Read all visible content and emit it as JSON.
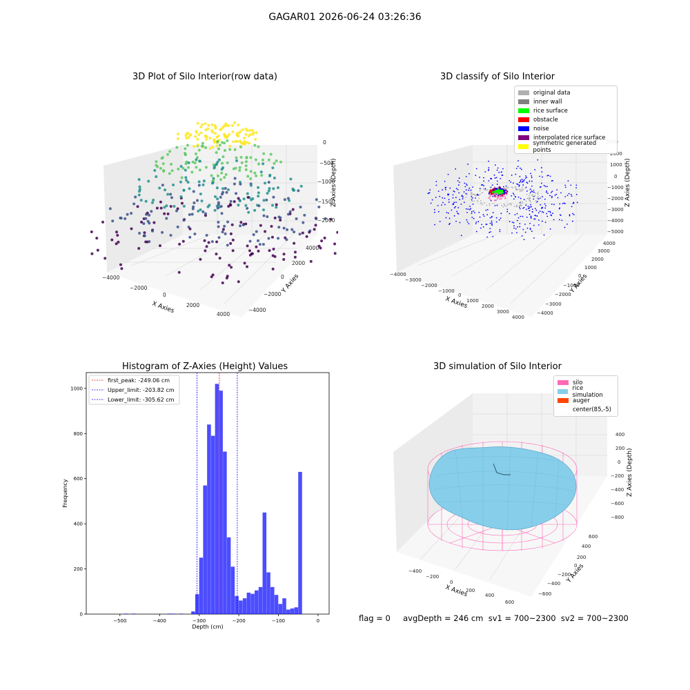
{
  "figure": {
    "suptitle": "GAGAR01 2026-06-24 03:26:36",
    "footer": "flag = 0     avgDepth = 246 cm  sv1 = 700~2300  sv2 = 700~2300"
  },
  "panels": {
    "raw": {
      "title": "3D Plot of Silo Interior(row data)",
      "xlabel": "X Axies",
      "ylabel": "Y Axies",
      "zlabel": "Z Axies (Depth)",
      "xticks": [
        "−4000",
        "−2000",
        "0",
        "2000",
        "4000"
      ],
      "yticks": [
        "−4000",
        "−2000",
        "0",
        "2000",
        "4000"
      ],
      "zticks": [
        "0",
        "−500",
        "−1000",
        "−1500",
        "−2000"
      ]
    },
    "classify": {
      "title": "3D classify of Silo Interior",
      "xlabel": "X Axies",
      "ylabel": "Y Axies",
      "zlabel": "Z Axies (Depth)",
      "xticks": [
        "−4000",
        "−3000",
        "−2000",
        "−1000",
        "0",
        "1000",
        "2000",
        "3000",
        "4000"
      ],
      "yticks": [
        "−4000",
        "−3000",
        "−2000",
        "−1000",
        "0",
        "1000",
        "2000",
        "3000",
        "4000"
      ],
      "zticks": [
        "3000",
        "2000",
        "1000",
        "0",
        "−1000",
        "−2000",
        "−3000",
        "−4000",
        "−5000"
      ],
      "legend": [
        {
          "label": "original data",
          "color": "#b0b0b0"
        },
        {
          "label": "inner wall",
          "color": "#808080"
        },
        {
          "label": "rice surface",
          "color": "#00ff00"
        },
        {
          "label": "obstacle",
          "color": "#ff0000"
        },
        {
          "label": "noise",
          "color": "#0000ff"
        },
        {
          "label": "interpolated rice surface",
          "color": "#800080"
        },
        {
          "label": "symmetric generated points",
          "color": "#ffff00"
        }
      ]
    },
    "simulation": {
      "title": "3D simulation of Silo Interior",
      "xlabel": "X Axies",
      "ylabel": "Y Axies",
      "zlabel": "Z Axies (Depth)",
      "xticks": [
        "−400",
        "−200",
        "0",
        "200",
        "400",
        "600"
      ],
      "yticks": [
        "−600",
        "−400",
        "−200",
        "0",
        "200",
        "400",
        "600"
      ],
      "zticks": [
        "400",
        "200",
        "0",
        "−200",
        "−400",
        "−600",
        "−800"
      ],
      "legend": [
        {
          "label": "silo",
          "color": "#ff69b4"
        },
        {
          "label": "rice simulation",
          "color": "#87ceeb"
        },
        {
          "label": "auger",
          "color": "#ff4500"
        },
        {
          "label": "center(85,-5)",
          "color": ""
        }
      ]
    }
  },
  "chart_data": {
    "type": "bar",
    "title": "Histogram of Z-Axies (Height) Values",
    "xlabel": "Depth (cm)",
    "ylabel": "Frequency",
    "xlim": [
      -585,
      28
    ],
    "ylim": [
      0,
      1070
    ],
    "xticks": [
      -500,
      -400,
      -300,
      -200,
      -100,
      0
    ],
    "xtick_labels": [
      "−500",
      "−400",
      "−300",
      "−200",
      "−100",
      "0"
    ],
    "yticks": [
      0,
      200,
      400,
      600,
      800,
      1000
    ],
    "bar_color": "#0000ff",
    "bin_width": 10,
    "bins": [
      {
        "x0": -490,
        "count": 2
      },
      {
        "x0": -470,
        "count": 2
      },
      {
        "x0": -380,
        "count": 2
      },
      {
        "x0": -370,
        "count": 2
      },
      {
        "x0": -350,
        "count": 2
      },
      {
        "x0": -320,
        "count": 12
      },
      {
        "x0": -310,
        "count": 88
      },
      {
        "x0": -300,
        "count": 250
      },
      {
        "x0": -290,
        "count": 570
      },
      {
        "x0": -280,
        "count": 840
      },
      {
        "x0": -270,
        "count": 790
      },
      {
        "x0": -260,
        "count": 1020
      },
      {
        "x0": -250,
        "count": 990
      },
      {
        "x0": -240,
        "count": 720
      },
      {
        "x0": -230,
        "count": 340
      },
      {
        "x0": -220,
        "count": 210
      },
      {
        "x0": -210,
        "count": 80
      },
      {
        "x0": -200,
        "count": 60
      },
      {
        "x0": -190,
        "count": 70
      },
      {
        "x0": -180,
        "count": 95
      },
      {
        "x0": -170,
        "count": 90
      },
      {
        "x0": -160,
        "count": 105
      },
      {
        "x0": -150,
        "count": 120
      },
      {
        "x0": -140,
        "count": 450
      },
      {
        "x0": -130,
        "count": 185
      },
      {
        "x0": -120,
        "count": 120
      },
      {
        "x0": -110,
        "count": 85
      },
      {
        "x0": -100,
        "count": 45
      },
      {
        "x0": -90,
        "count": 70
      },
      {
        "x0": -80,
        "count": 20
      },
      {
        "x0": -70,
        "count": 25
      },
      {
        "x0": -60,
        "count": 30
      },
      {
        "x0": -50,
        "count": 630
      }
    ],
    "vlines": [
      {
        "x": -249.06,
        "label": "first_peak: -249.06 cm",
        "color": "#ff0000"
      },
      {
        "x": -203.82,
        "label": "Upper_limit: -203.82 cm",
        "color": "#0000ff"
      },
      {
        "x": -305.62,
        "label": "Lower_limit: -305.62 cm",
        "color": "#0000ff"
      }
    ],
    "legend_position": "upper-left"
  }
}
